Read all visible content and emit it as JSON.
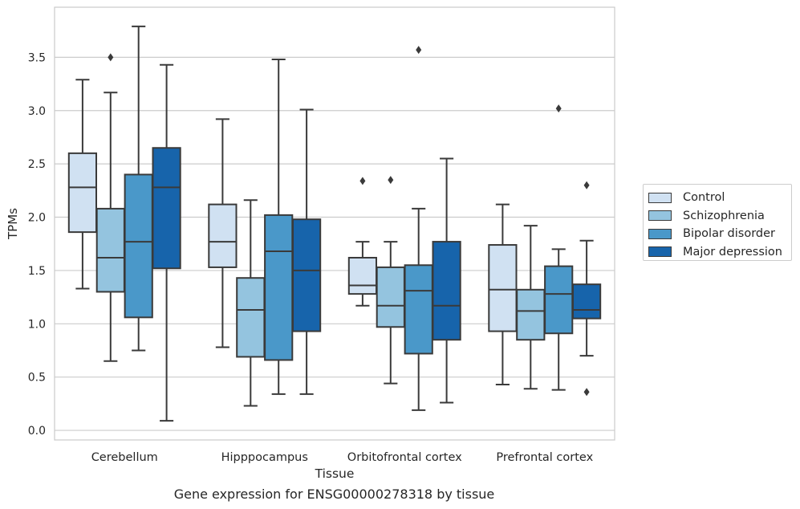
{
  "caption": "Gene expression for ENSG00000278318 by tissue",
  "chart_data": {
    "type": "box",
    "xlabel": "Tissue",
    "ylabel": "TPMs",
    "ylim": [
      -0.09,
      3.97
    ],
    "yticks": [
      "0.0",
      "0.5",
      "1.0",
      "1.5",
      "2.0",
      "2.5",
      "3.0",
      "3.5"
    ],
    "categories": [
      "Cerebellum",
      "Hipppocampus",
      "Orbitofrontal cortex",
      "Prefrontal cortex"
    ],
    "grid": "horizontal",
    "legend_position": "outside-right",
    "series": [
      {
        "name": "Control",
        "color": "#d0e1f2",
        "boxes": [
          {
            "whislo": 1.33,
            "q1": 1.86,
            "med": 2.28,
            "q3": 2.6,
            "whishi": 3.29,
            "fliers": []
          },
          {
            "whislo": 0.78,
            "q1": 1.53,
            "med": 1.77,
            "q3": 2.12,
            "whishi": 2.92,
            "fliers": []
          },
          {
            "whislo": 1.17,
            "q1": 1.28,
            "med": 1.36,
            "q3": 1.62,
            "whishi": 1.77,
            "fliers": [
              2.34
            ]
          },
          {
            "whislo": 0.43,
            "q1": 0.93,
            "med": 1.32,
            "q3": 1.74,
            "whishi": 2.12,
            "fliers": []
          }
        ]
      },
      {
        "name": "Schizophrenia",
        "color": "#94c4df",
        "boxes": [
          {
            "whislo": 0.65,
            "q1": 1.3,
            "med": 1.62,
            "q3": 2.08,
            "whishi": 3.17,
            "fliers": [
              3.5
            ]
          },
          {
            "whislo": 0.23,
            "q1": 0.69,
            "med": 1.13,
            "q3": 1.43,
            "whishi": 2.16,
            "fliers": []
          },
          {
            "whislo": 0.44,
            "q1": 0.97,
            "med": 1.17,
            "q3": 1.53,
            "whishi": 1.77,
            "fliers": [
              2.35
            ]
          },
          {
            "whislo": 0.39,
            "q1": 0.85,
            "med": 1.12,
            "q3": 1.32,
            "whishi": 1.92,
            "fliers": []
          }
        ]
      },
      {
        "name": "Bipolar disorder",
        "color": "#4a98c9",
        "boxes": [
          {
            "whislo": 0.75,
            "q1": 1.06,
            "med": 1.77,
            "q3": 2.4,
            "whishi": 3.79,
            "fliers": []
          },
          {
            "whislo": 0.34,
            "q1": 0.66,
            "med": 1.68,
            "q3": 2.02,
            "whishi": 3.48,
            "fliers": []
          },
          {
            "whislo": 0.19,
            "q1": 0.72,
            "med": 1.31,
            "q3": 1.55,
            "whishi": 2.08,
            "fliers": [
              3.57
            ]
          },
          {
            "whislo": 0.38,
            "q1": 0.91,
            "med": 1.28,
            "q3": 1.54,
            "whishi": 1.7,
            "fliers": [
              3.02
            ]
          }
        ]
      },
      {
        "name": "Major depression",
        "color": "#1764ab",
        "boxes": [
          {
            "whislo": 0.09,
            "q1": 1.52,
            "med": 2.28,
            "q3": 2.65,
            "whishi": 3.43,
            "fliers": []
          },
          {
            "whislo": 0.34,
            "q1": 0.93,
            "med": 1.5,
            "q3": 1.98,
            "whishi": 3.01,
            "fliers": []
          },
          {
            "whislo": 0.26,
            "q1": 0.85,
            "med": 1.17,
            "q3": 1.77,
            "whishi": 2.55,
            "fliers": []
          },
          {
            "whislo": 0.7,
            "q1": 1.05,
            "med": 1.13,
            "q3": 1.37,
            "whishi": 1.78,
            "fliers": [
              2.3,
              0.36
            ]
          }
        ]
      }
    ]
  }
}
